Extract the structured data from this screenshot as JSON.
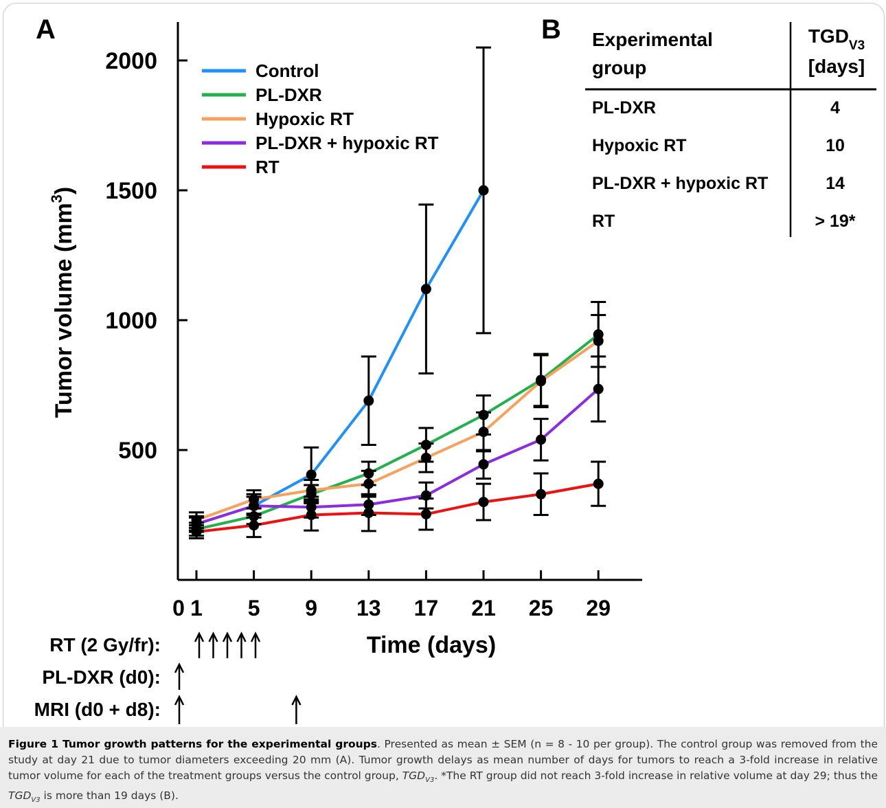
{
  "panel_a_label": "A",
  "panel_b_label": "B",
  "chart_data": {
    "type": "line",
    "title": "",
    "xlabel": "Time (days)",
    "ylabel": "Tumor volume (mm3)",
    "xlim": [
      0,
      35
    ],
    "ylim": [
      0,
      2150
    ],
    "x_ticks": [
      0,
      1,
      5,
      9,
      13,
      17,
      21,
      25,
      29
    ],
    "y_ticks": [
      500,
      1000,
      1500,
      2000
    ],
    "legend_position": "top-left",
    "series": [
      {
        "name": "Control",
        "color": "#1e90ff",
        "x": [
          1,
          5,
          9,
          13,
          17,
          21
        ],
        "y": [
          215,
          285,
          405,
          690,
          1120,
          1500
        ],
        "err": [
          25,
          45,
          105,
          170,
          325,
          550
        ]
      },
      {
        "name": "PL-DXR",
        "color": "#22b14c",
        "x": [
          1,
          5,
          9,
          13,
          17,
          21,
          25,
          29
        ],
        "y": [
          195,
          245,
          330,
          410,
          520,
          635,
          770,
          945
        ],
        "err": [
          25,
          30,
          35,
          45,
          65,
          75,
          100,
          125
        ]
      },
      {
        "name": "Hypoxic RT",
        "color": "#f7a15c",
        "x": [
          1,
          5,
          9,
          13,
          17,
          21,
          25,
          29
        ],
        "y": [
          230,
          310,
          345,
          370,
          470,
          570,
          765,
          920
        ],
        "err": [
          30,
          35,
          40,
          50,
          55,
          75,
          100,
          100
        ]
      },
      {
        "name": "PL-DXR + hypoxic RT",
        "color": "#8b2be2",
        "x": [
          1,
          5,
          9,
          13,
          17,
          21,
          25,
          29
        ],
        "y": [
          215,
          285,
          280,
          290,
          325,
          445,
          540,
          735
        ],
        "err": [
          30,
          35,
          40,
          40,
          50,
          55,
          80,
          125
        ]
      },
      {
        "name": "RT",
        "color": "#ee1111",
        "x": [
          1,
          5,
          9,
          13,
          17,
          21,
          25,
          29
        ],
        "y": [
          185,
          210,
          250,
          258,
          253,
          300,
          330,
          370
        ],
        "err": [
          25,
          45,
          60,
          70,
          60,
          70,
          80,
          85
        ]
      }
    ]
  },
  "schedule": {
    "rt_label": "RT (2 Gy/fr):",
    "pldxr_label": "PL-DXR (d0):",
    "mri_label": "MRI (d0 + d8):",
    "rt_days": [
      1,
      2,
      3,
      4,
      5
    ],
    "pldxr_days": [
      0
    ],
    "mri_days": [
      0,
      8
    ]
  },
  "table": {
    "header_group_1": "Experimental",
    "header_group_2": "group",
    "header_tgd": "TGD",
    "header_tgd_sub": "V3",
    "header_days": "[days]",
    "rows": [
      {
        "group": "PL-DXR",
        "days": "4"
      },
      {
        "group": "Hypoxic RT",
        "days": "10"
      },
      {
        "group": "PL-DXR + hypoxic RT",
        "days": "14"
      },
      {
        "group": "RT",
        "days": "> 19*"
      }
    ]
  },
  "caption": {
    "title": "Figure 1 Tumor growth patterns for the experimental groups",
    "body_1": ". Presented as mean ± SEM (n = 8 - 10 per group). The control group was removed from the study at day 21 due to tumor diameters exceeding 20 mm (A). Tumor growth delays as mean number of days for tumors to reach a 3-fold increase in relative tumor volume for each of the treatment groups versus the control group, ",
    "tgd": "TGD",
    "tgd_sub": "V3",
    "body_2": ". *The RT group did not reach 3-fold increase in relative volume at day 29; thus the ",
    "body_3": " is more than 19 days (B)."
  }
}
